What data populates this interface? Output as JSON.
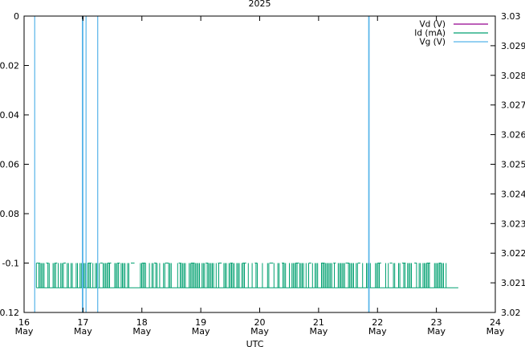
{
  "chart_data": {
    "type": "line",
    "title": "2025",
    "xlabel": "UTC",
    "ylabel": "",
    "y2label": "",
    "xlim": [
      "2025-05-16 00:00",
      "2025-05-24 00:00"
    ],
    "ylim": [
      -0.12,
      0
    ],
    "y2lim": [
      3.02,
      3.03
    ],
    "x_ticks": [
      {
        "day": "16",
        "month": "May"
      },
      {
        "day": "17",
        "month": "May"
      },
      {
        "day": "18",
        "month": "May"
      },
      {
        "day": "19",
        "month": "May"
      },
      {
        "day": "20",
        "month": "May"
      },
      {
        "day": "21",
        "month": "May"
      },
      {
        "day": "22",
        "month": "May"
      },
      {
        "day": "23",
        "month": "May"
      },
      {
        "day": "24",
        "month": "May"
      }
    ],
    "y_ticks": [
      "0",
      "-0.02",
      "-0.04",
      "-0.06",
      "-0.08",
      "-0.1",
      "-0.12"
    ],
    "y2_ticks": [
      "3.03",
      "3.029",
      "3.028",
      "3.027",
      "3.026",
      "3.025",
      "3.024",
      "3.023",
      "3.022",
      "3.021",
      "3.02"
    ],
    "legend_position": "top-right",
    "series": [
      {
        "name": "Vd (V)",
        "color": "#94008f",
        "axis": "y1",
        "points": [
          [
            "2025-05-16 23:55",
            -0.0008
          ],
          [
            "2025-05-16 23:59",
            -0.0008
          ]
        ]
      },
      {
        "name": "Id (mA)",
        "color": "#00a070",
        "axis": "y1",
        "range": [
          "2025-05-16 05:00",
          "2025-05-23 05:00"
        ],
        "levels": [
          -0.1,
          -0.11
        ],
        "baseline": -0.11,
        "high_segments": [
          [
            "2025-05-16 05:00",
            "2025-05-16 06:30"
          ],
          [
            "2025-05-16 09:00",
            "2025-05-16 10:00"
          ],
          [
            "2025-05-16 12:30",
            "2025-05-16 13:30"
          ],
          [
            "2025-05-16 16:00",
            "2025-05-16 17:00"
          ],
          [
            "2025-05-17 02:00",
            "2025-05-17 03:30"
          ],
          [
            "2025-05-17 07:00",
            "2025-05-17 08:00"
          ],
          [
            "2025-05-17 10:00",
            "2025-05-17 11:30"
          ],
          [
            "2025-05-17 14:00",
            "2025-05-17 15:00"
          ],
          [
            "2025-05-17 19:30",
            "2025-05-17 21:00"
          ],
          [
            "2025-05-18 00:00",
            "2025-05-18 01:30"
          ],
          [
            "2025-05-18 05:00",
            "2025-05-18 06:00"
          ],
          [
            "2025-05-18 09:30",
            "2025-05-18 11:00"
          ],
          [
            "2025-05-18 15:00",
            "2025-05-18 16:00"
          ],
          [
            "2025-05-18 20:00",
            "2025-05-18 21:30"
          ],
          [
            "2025-05-19 02:00",
            "2025-05-19 03:00"
          ],
          [
            "2025-05-19 07:00",
            "2025-05-19 08:30"
          ],
          [
            "2025-05-19 12:00",
            "2025-05-19 13:00"
          ],
          [
            "2025-05-19 17:00",
            "2025-05-19 18:30"
          ],
          [
            "2025-05-19 22:00",
            "2025-05-19 23:00"
          ],
          [
            "2025-05-20 04:00",
            "2025-05-20 05:30"
          ],
          [
            "2025-05-20 09:00",
            "2025-05-20 10:00"
          ],
          [
            "2025-05-20 14:30",
            "2025-05-20 16:00"
          ],
          [
            "2025-05-20 20:00",
            "2025-05-20 21:00"
          ],
          [
            "2025-05-21 01:00",
            "2025-05-21 02:30"
          ],
          [
            "2025-05-21 06:00",
            "2025-05-21 07:00"
          ],
          [
            "2025-05-21 11:00",
            "2025-05-21 12:30"
          ],
          [
            "2025-05-21 16:00",
            "2025-05-21 17:00"
          ],
          [
            "2025-05-22 00:00",
            "2025-05-22 01:30"
          ],
          [
            "2025-05-22 05:00",
            "2025-05-22 06:00"
          ],
          [
            "2025-05-22 10:00",
            "2025-05-22 11:30"
          ],
          [
            "2025-05-22 15:00",
            "2025-05-22 16:00"
          ],
          [
            "2025-05-22 20:00",
            "2025-05-22 21:30"
          ],
          [
            "2025-05-23 01:00",
            "2025-05-23 02:00"
          ]
        ]
      },
      {
        "name": "Vg (V)",
        "color": "#56b4e9",
        "axis": "y2",
        "spikes": [
          "2025-05-16 04:20",
          "2025-05-16 23:45",
          "2025-05-16 23:58",
          "2025-05-17 01:15",
          "2025-05-17 06:00",
          "2025-05-21 20:25",
          "2025-05-21 20:35"
        ]
      }
    ]
  }
}
